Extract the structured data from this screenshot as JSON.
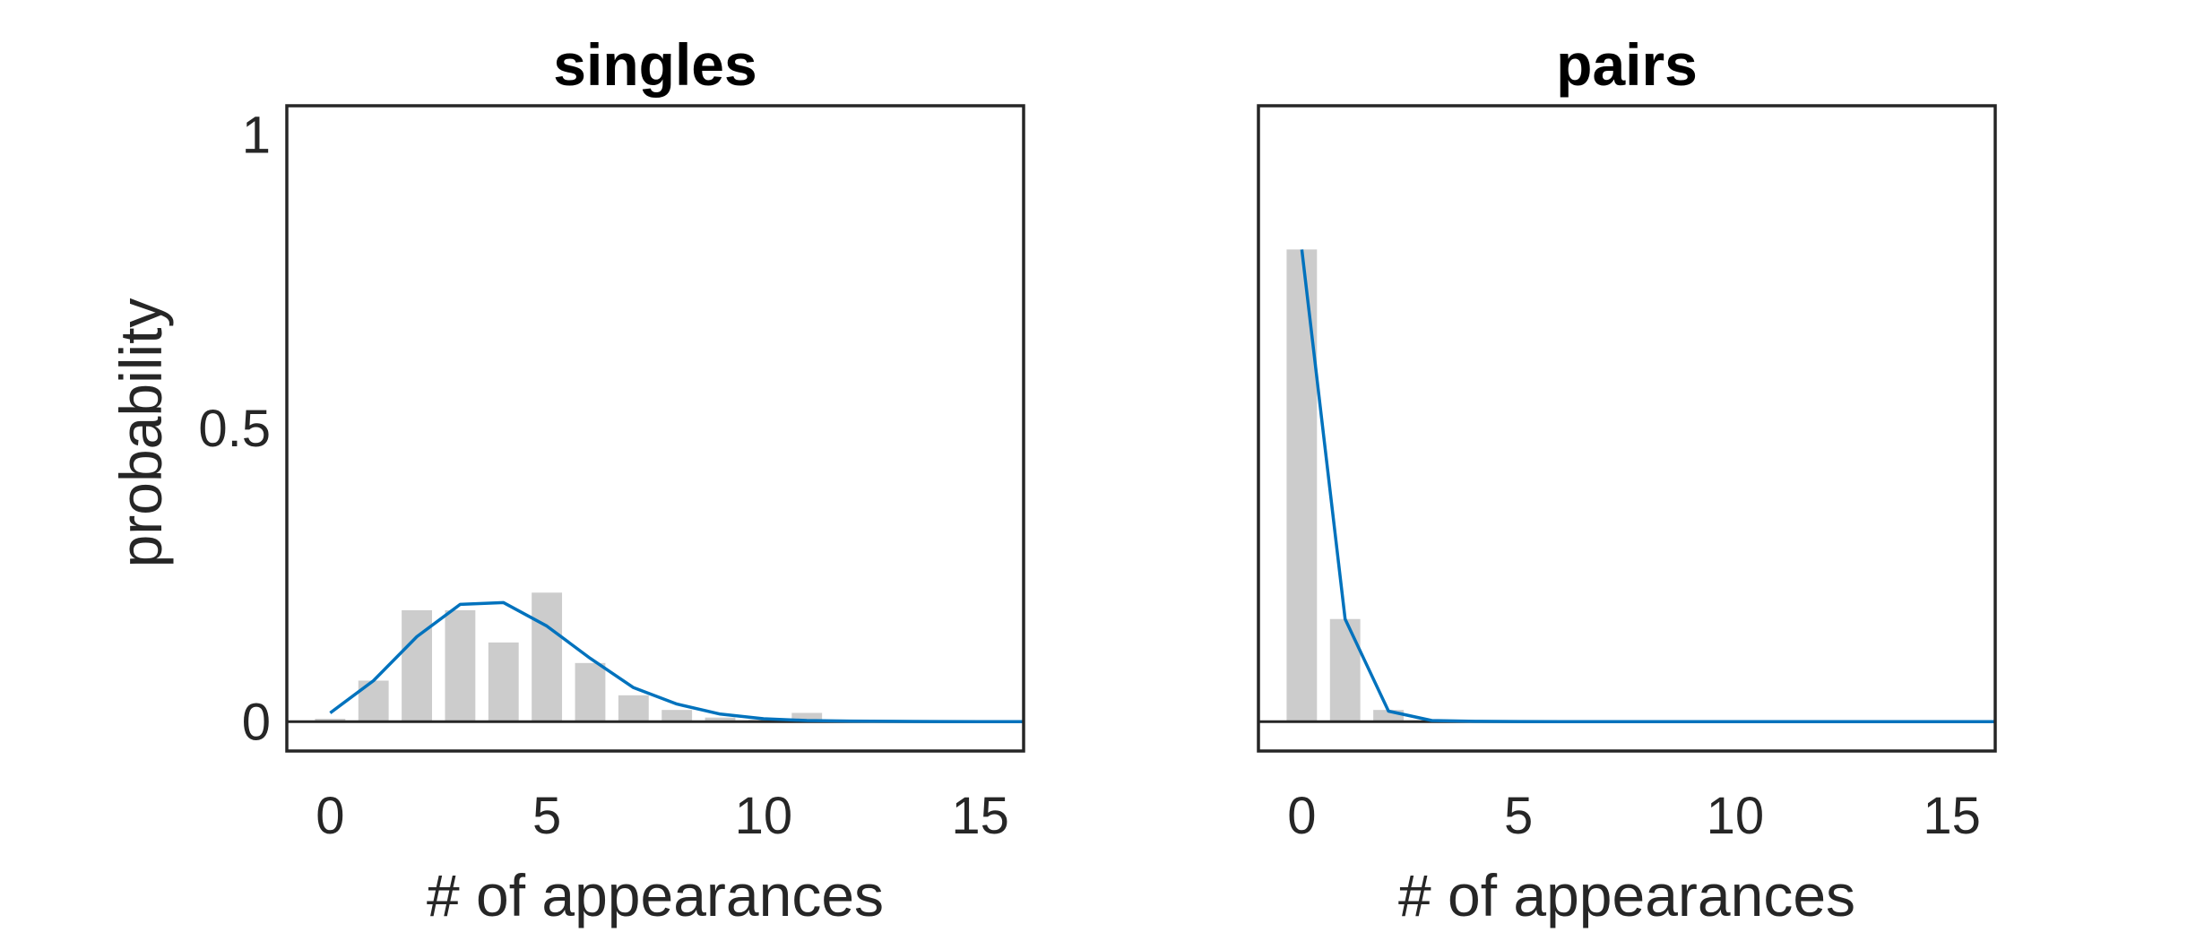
{
  "colors": {
    "bar": "#cccccc",
    "line": "#0072bd",
    "axes": "#262626"
  },
  "chart_data": [
    {
      "type": "bar",
      "title": "singles",
      "xlabel": "# of appearances",
      "ylabel": "probability",
      "xlim": [
        -1,
        16
      ],
      "ylim": [
        -0.05,
        1.05
      ],
      "xticks": [
        0,
        5,
        10,
        15
      ],
      "yticks": [
        0,
        0.5,
        1
      ],
      "ytick_labels": [
        "0",
        "0.5",
        "1"
      ],
      "grid": false,
      "series": [
        {
          "kind": "bar",
          "x": [
            0,
            1,
            2,
            3,
            4,
            5,
            6,
            7,
            8,
            9,
            10,
            11
          ],
          "values": [
            0.005,
            0.07,
            0.19,
            0.19,
            0.135,
            0.22,
            0.1,
            0.045,
            0.02,
            0.007,
            0.003,
            0.015
          ]
        },
        {
          "kind": "line",
          "x": [
            0,
            1,
            2,
            3,
            4,
            5,
            6,
            7,
            8,
            9,
            10,
            11,
            12,
            13,
            14,
            15,
            16
          ],
          "values": [
            0.015,
            0.07,
            0.145,
            0.2,
            0.203,
            0.163,
            0.108,
            0.058,
            0.03,
            0.013,
            0.005,
            0.002,
            0.001,
            0.0005,
            0.0002,
            0.0001,
            0
          ]
        }
      ]
    },
    {
      "type": "bar",
      "title": "pairs",
      "xlabel": "# of appearances",
      "ylabel": "",
      "xlim": [
        -1,
        16
      ],
      "ylim": [
        -0.05,
        1.05
      ],
      "xticks": [
        0,
        5,
        10,
        15
      ],
      "yticks": [],
      "grid": false,
      "series": [
        {
          "kind": "bar",
          "x": [
            0,
            1,
            2
          ],
          "values": [
            0.805,
            0.175,
            0.02
          ]
        },
        {
          "kind": "line",
          "x": [
            0,
            1,
            2,
            3,
            4,
            5,
            6,
            7,
            8,
            9,
            10,
            11,
            12,
            13,
            14,
            15,
            16
          ],
          "values": [
            0.805,
            0.175,
            0.018,
            0.002,
            0.0005,
            0.0002,
            0.0001,
            0,
            0,
            0,
            0,
            0,
            0,
            0,
            0,
            0,
            0
          ]
        }
      ]
    }
  ]
}
